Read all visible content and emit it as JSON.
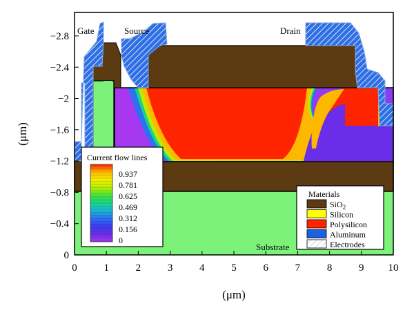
{
  "chart_data": {
    "type": "contour",
    "title": "",
    "xlabel": "(μm)",
    "ylabel": "(μm)",
    "xlim": [
      0,
      10
    ],
    "ylim": [
      0,
      -3.1
    ],
    "x_ticks": [
      "0",
      "1",
      "2",
      "3",
      "4",
      "5",
      "6",
      "7",
      "8",
      "9",
      "10"
    ],
    "x_tick_values": [
      0,
      1,
      2,
      3,
      4,
      5,
      6,
      7,
      8,
      9,
      10
    ],
    "y_ticks": [
      "0",
      "−0.4",
      "−0.8",
      "−1.2",
      "−1.6",
      "−2",
      "−2.4",
      "−2.8"
    ],
    "y_tick_values": [
      0,
      -0.4,
      -0.8,
      -1.2,
      -1.6,
      -2.0,
      -2.4,
      -2.8
    ],
    "region_labels": [
      "Gate",
      "Source",
      "Drain",
      "Substrate"
    ],
    "colorbar": {
      "title": "Current flow lines",
      "levels": [
        "0.937",
        "0.781",
        "0.625",
        "0.469",
        "0.312",
        "0.156",
        "0"
      ],
      "level_values": [
        0.937,
        0.781,
        0.625,
        0.469,
        0.312,
        0.156,
        0
      ],
      "colors": [
        "#ff2400",
        "#ff7b00",
        "#ffb800",
        "#f3ee00",
        "#b8ee00",
        "#46e23a",
        "#17d48c",
        "#1ab6d4",
        "#2b71f0",
        "#3a3cf0",
        "#6a2ee8",
        "#a838f0"
      ]
    },
    "materials_legend": {
      "title": "Materials",
      "items": [
        {
          "name": "SiO2",
          "color": "#5c3a12"
        },
        {
          "name": "Silicon",
          "color": "#ffff00"
        },
        {
          "name": "Polysilicon",
          "color": "#ff2400"
        },
        {
          "name": "Aluminum",
          "color": "#1f5fe0"
        },
        {
          "name": "Electrodes",
          "color": "#ffffff"
        }
      ]
    }
  }
}
